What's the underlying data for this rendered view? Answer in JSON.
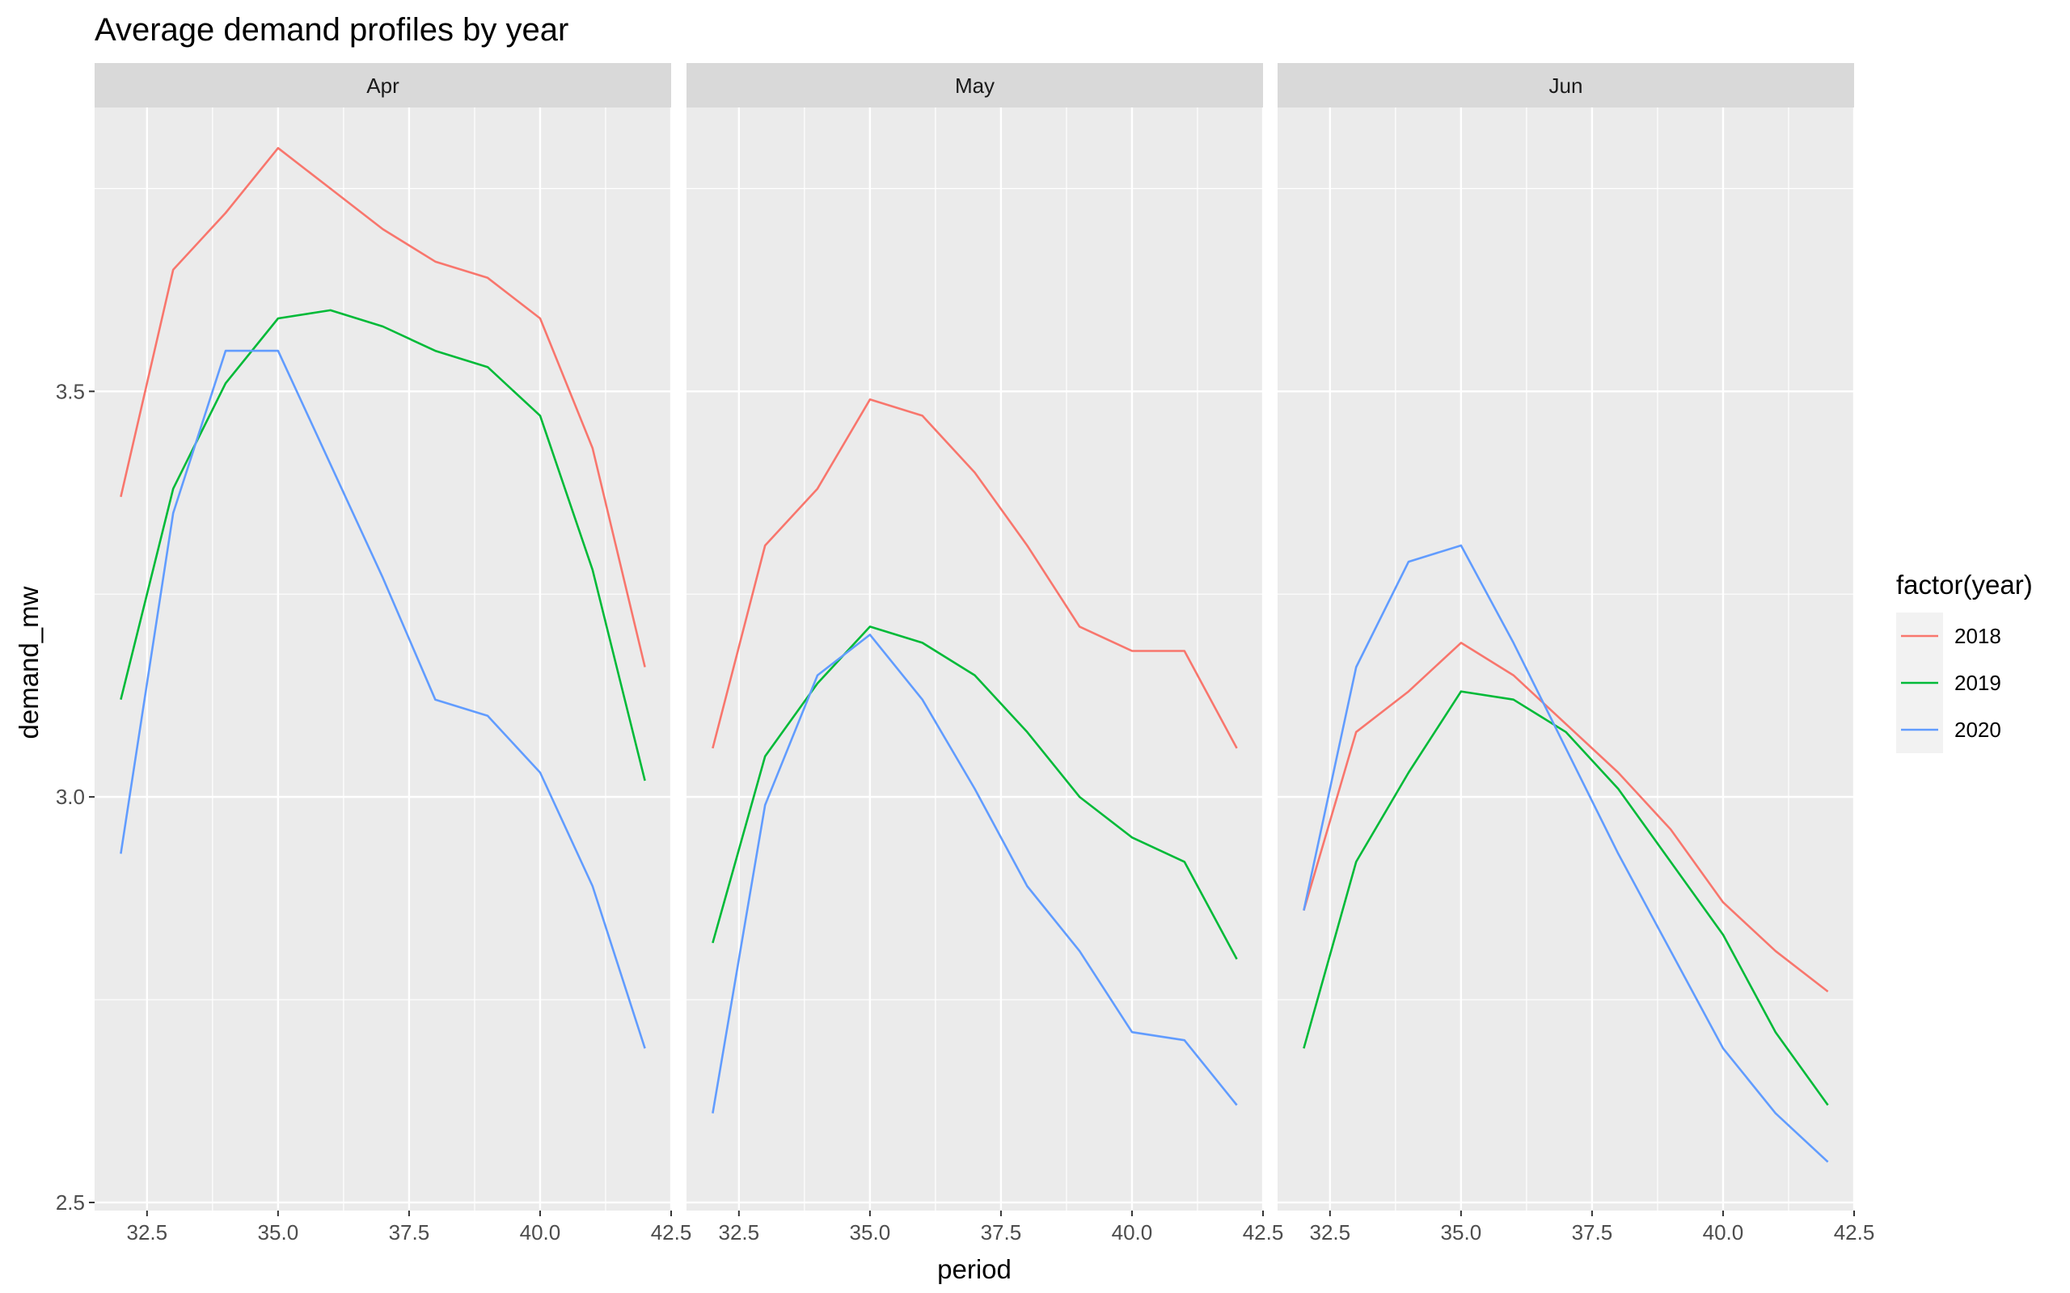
{
  "chart_data": {
    "type": "line",
    "title": "Average demand profiles by year",
    "xlabel": "period",
    "ylabel": "demand_mw",
    "x": [
      32,
      33,
      34,
      35,
      36,
      37,
      38,
      39,
      40,
      41,
      42
    ],
    "xlim": [
      31.5,
      42.5
    ],
    "ylim": [
      2.49,
      3.85
    ],
    "x_ticks": [
      32.5,
      35.0,
      37.5,
      40.0,
      42.5
    ],
    "x_tick_labels": [
      "32.5",
      "35.0",
      "37.5",
      "40.0",
      "42.5"
    ],
    "y_ticks": [
      2.5,
      3.0,
      3.5
    ],
    "y_tick_labels": [
      "2.5",
      "3.0",
      "3.5"
    ],
    "grid": true,
    "legend": {
      "title": "factor(year)",
      "placement": "right",
      "entries": [
        {
          "label": "2018",
          "color": "#F8766D"
        },
        {
          "label": "2019",
          "color": "#00BA38"
        },
        {
          "label": "2020",
          "color": "#619CFF"
        }
      ]
    },
    "panel_background": "#EBEBEB",
    "strip_background": "#D9D9D9",
    "panels": [
      {
        "label": "Apr",
        "series": [
          {
            "name": "2018",
            "color": "#F8766D",
            "values": [
              3.37,
              3.65,
              3.72,
              3.8,
              3.75,
              3.7,
              3.66,
              3.64,
              3.59,
              3.43,
              3.16
            ]
          },
          {
            "name": "2019",
            "color": "#00BA38",
            "values": [
              3.12,
              3.38,
              3.51,
              3.59,
              3.6,
              3.58,
              3.55,
              3.53,
              3.47,
              3.28,
              3.02
            ]
          },
          {
            "name": "2020",
            "color": "#619CFF",
            "values": [
              2.93,
              3.35,
              3.55,
              3.55,
              3.41,
              3.27,
              3.12,
              3.1,
              3.03,
              2.89,
              2.69
            ]
          }
        ]
      },
      {
        "label": "May",
        "series": [
          {
            "name": "2018",
            "color": "#F8766D",
            "values": [
              3.06,
              3.31,
              3.38,
              3.49,
              3.47,
              3.4,
              3.31,
              3.21,
              3.18,
              3.18,
              3.06
            ]
          },
          {
            "name": "2019",
            "color": "#00BA38",
            "values": [
              2.82,
              3.05,
              3.14,
              3.21,
              3.19,
              3.15,
              3.08,
              3.0,
              2.95,
              2.92,
              2.8
            ]
          },
          {
            "name": "2020",
            "color": "#619CFF",
            "values": [
              2.61,
              2.99,
              3.15,
              3.2,
              3.12,
              3.01,
              2.89,
              2.81,
              2.71,
              2.7,
              2.62
            ]
          }
        ]
      },
      {
        "label": "Jun",
        "series": [
          {
            "name": "2018",
            "color": "#F8766D",
            "values": [
              2.86,
              3.08,
              3.13,
              3.19,
              3.15,
              3.09,
              3.03,
              2.96,
              2.87,
              2.81,
              2.76
            ]
          },
          {
            "name": "2019",
            "color": "#00BA38",
            "values": [
              2.69,
              2.92,
              3.03,
              3.13,
              3.12,
              3.08,
              3.01,
              2.92,
              2.83,
              2.71,
              2.62
            ]
          },
          {
            "name": "2020",
            "color": "#619CFF",
            "values": [
              2.86,
              3.16,
              3.29,
              3.31,
              3.19,
              3.06,
              2.93,
              2.81,
              2.69,
              2.61,
              2.55
            ]
          }
        ]
      }
    ]
  }
}
